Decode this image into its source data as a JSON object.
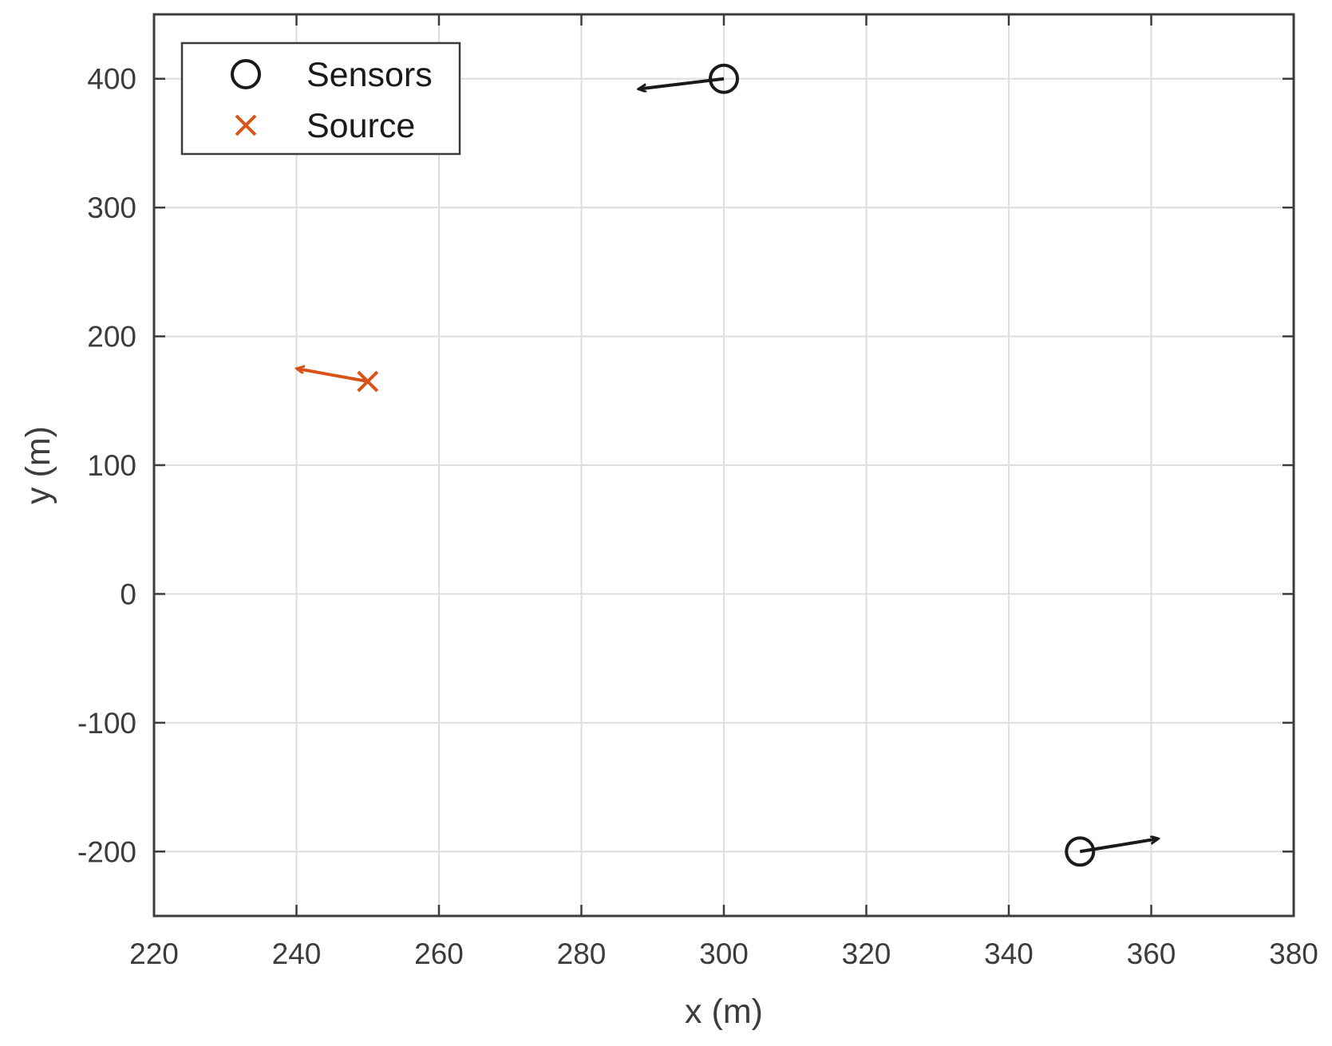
{
  "chart_data": {
    "type": "scatter",
    "xlabel": "x (m)",
    "ylabel": "y (m)",
    "xlim": [
      220,
      380
    ],
    "ylim": [
      -250,
      450
    ],
    "xticks": [
      220,
      240,
      260,
      280,
      300,
      320,
      340,
      360,
      380
    ],
    "yticks": [
      -200,
      -100,
      0,
      100,
      200,
      300,
      400
    ],
    "xtick_labels": [
      "220",
      "240",
      "260",
      "280",
      "300",
      "320",
      "340",
      "360",
      "380"
    ],
    "ytick_labels": [
      "-200",
      "-100",
      "0",
      "100",
      "200",
      "300",
      "400"
    ],
    "grid": true,
    "legend_position": "top-left",
    "series": [
      {
        "name": "Sensors",
        "marker": "circle",
        "color": "#1a1a1a",
        "points": [
          {
            "x": 300,
            "y": 400
          },
          {
            "x": 350,
            "y": -200
          }
        ],
        "arrows": [
          {
            "x": 300,
            "y": 400,
            "x_end": 288,
            "y_end": 392
          },
          {
            "x": 350,
            "y": -200,
            "x_end": 361,
            "y_end": -190
          }
        ]
      },
      {
        "name": "Source",
        "marker": "x",
        "color": "#d95319",
        "points": [
          {
            "x": 250,
            "y": 165
          }
        ],
        "arrows": [
          {
            "x": 250,
            "y": 165,
            "x_end": 240,
            "y_end": 175
          }
        ]
      }
    ]
  }
}
